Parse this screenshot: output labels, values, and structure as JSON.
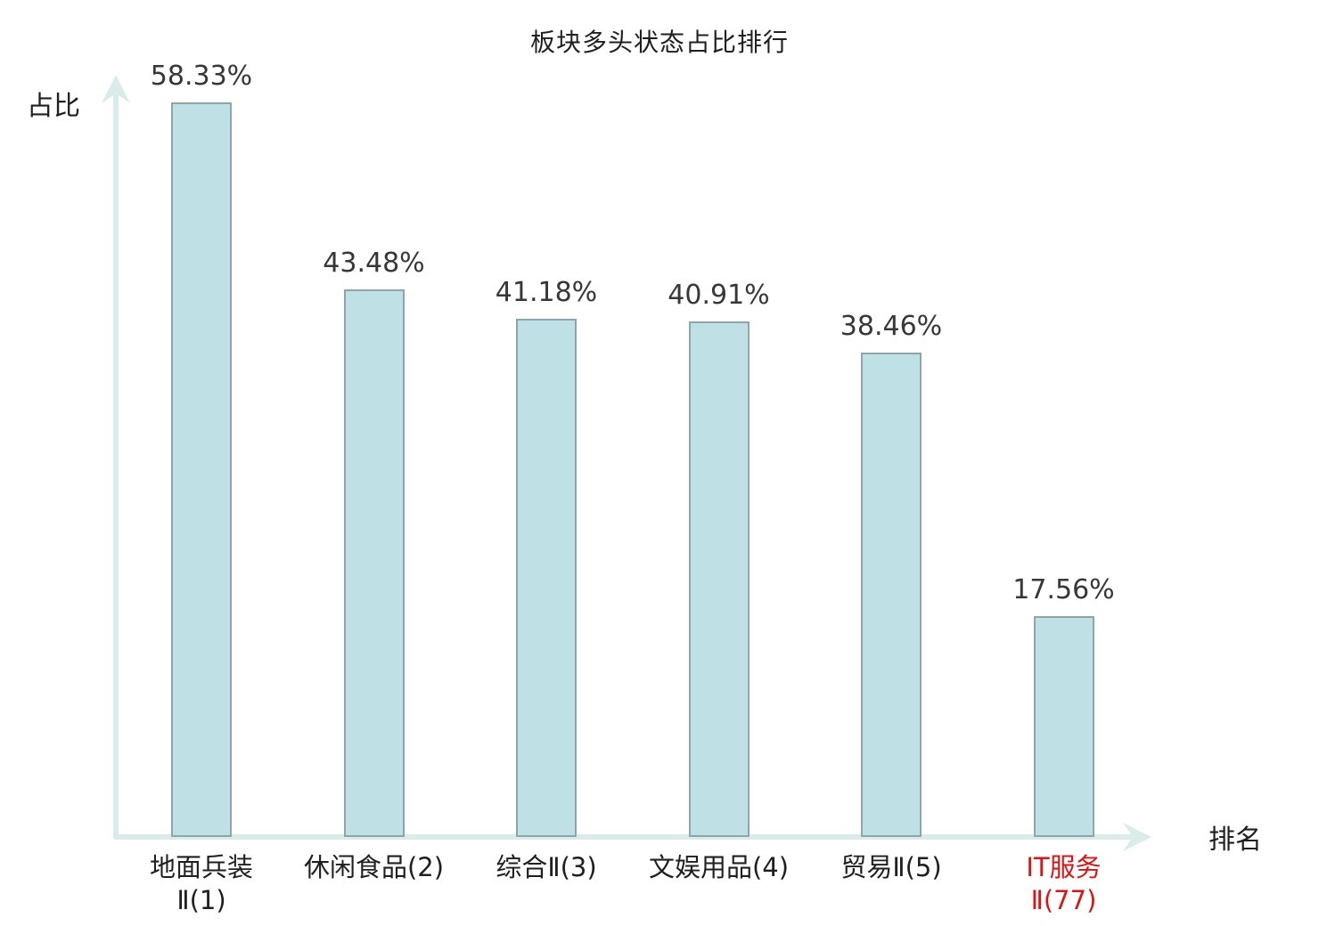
{
  "chart_data": {
    "type": "bar",
    "title": "板块多头状态占比排行",
    "xlabel": "排名",
    "ylabel": "占比",
    "categories": [
      "地面兵装\nⅡ(1)",
      "休闲食品(2)",
      "综合Ⅱ(3)",
      "文娱用品(4)",
      "贸易Ⅱ(5)",
      "IT服务\nⅡ(77)"
    ],
    "values": [
      58.33,
      43.48,
      41.18,
      40.91,
      38.46,
      17.56
    ],
    "value_labels": [
      "58.33%",
      "43.48%",
      "41.18%",
      "40.91%",
      "38.46%",
      "17.56%"
    ],
    "highlighted_index": 5,
    "ylim": [
      0,
      60
    ],
    "grid": false,
    "legend": false,
    "colors": {
      "bar_fill": "#bfe0e5",
      "bar_border": "#8ba7ac",
      "axis": "#d9ece9",
      "value_text": "#373737",
      "label_text": "#1f1f1f",
      "highlight": "#e01212",
      "background": "#ffffff"
    }
  }
}
